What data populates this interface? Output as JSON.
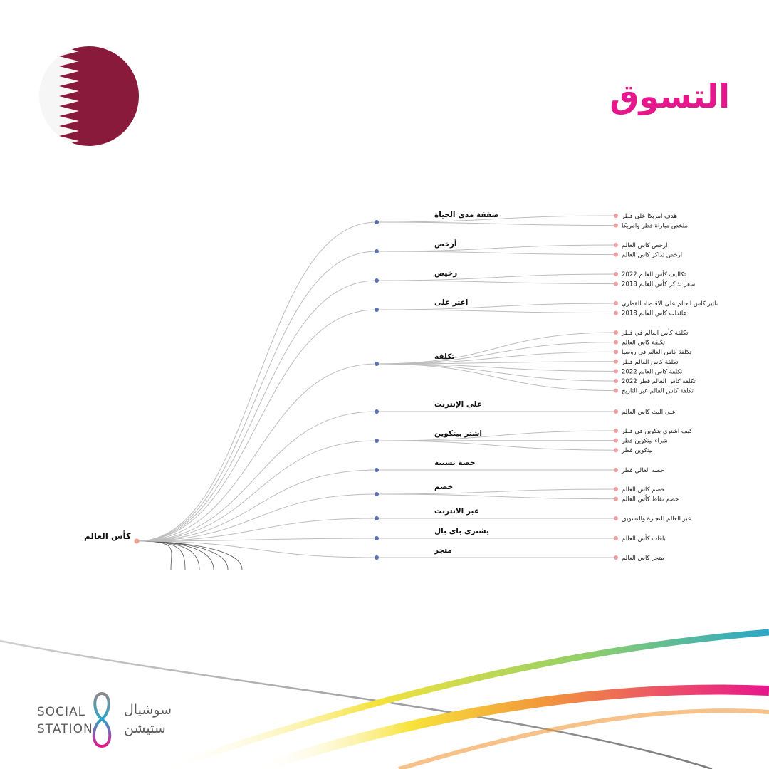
{
  "title": "التسوق",
  "brand": {
    "en_line1": "SOCIAL",
    "en_line2": "STATION",
    "ar_line1": "سوشيال",
    "ar_line2": "ستيشن"
  },
  "colors": {
    "accent": "#e6168c",
    "flag_maroon": "#8a1a3b",
    "root_dot": "#f0a090",
    "mid_dot": "#5a6fb0",
    "leaf_dot": "#f0a0a0"
  },
  "tree": {
    "root": "كأس العالم",
    "branches": [
      {
        "label": "صفقة مدى الحياة",
        "leaves": [
          "هدف امريكا على قطر",
          "ملخص مباراة قطر وامريكا"
        ]
      },
      {
        "label": "أرخص",
        "leaves": [
          "ارخص كاس العالم",
          "ارخص تذاكر كاس العالم"
        ]
      },
      {
        "label": "رخيص",
        "leaves": [
          "تكاليف كأس العالم 2022",
          "سعر تذاكر كأس العالم 2018"
        ]
      },
      {
        "label": "اعثر على",
        "leaves": [
          "تاثير كاس العالم على الاقتصاد القطري",
          "عائدات كاس العالم 2018"
        ]
      },
      {
        "label": "تكلفة",
        "leaves": [
          "تكلفة كأس العالم في قطر",
          "تكلفة كاس العالم",
          "تكلفة كاس العالم في روسيا",
          "تكلفة كاس العالم قطر",
          "تكلفة كاس العالم 2022",
          "تكلفة كاس العالم قطر 2022",
          "تكلفة كاس العالم عبر التاريخ"
        ]
      },
      {
        "label": "على الإنترنت",
        "leaves": [
          "على البث كاس العالم"
        ]
      },
      {
        "label": "اشتر بيتكوين",
        "leaves": [
          "كيف اشتري بتكوين في قطر",
          "شراء بيتكوين قطر",
          "بيتكوين قطر"
        ]
      },
      {
        "label": "حصة نسبية",
        "leaves": [
          "حصة العالي قطر"
        ]
      },
      {
        "label": "خصم",
        "leaves": [
          "خصم كاس العالم",
          "خصم نقاط كأس العالم"
        ]
      },
      {
        "label": "عبر الانترنت",
        "leaves": [
          "عبر العالم للتجارة والتسويق"
        ]
      },
      {
        "label": "يشترى باي بال",
        "leaves": [
          "باقات كأس العالم"
        ]
      },
      {
        "label": "متجر",
        "leaves": [
          "متجر كاس العالم"
        ]
      }
    ]
  }
}
